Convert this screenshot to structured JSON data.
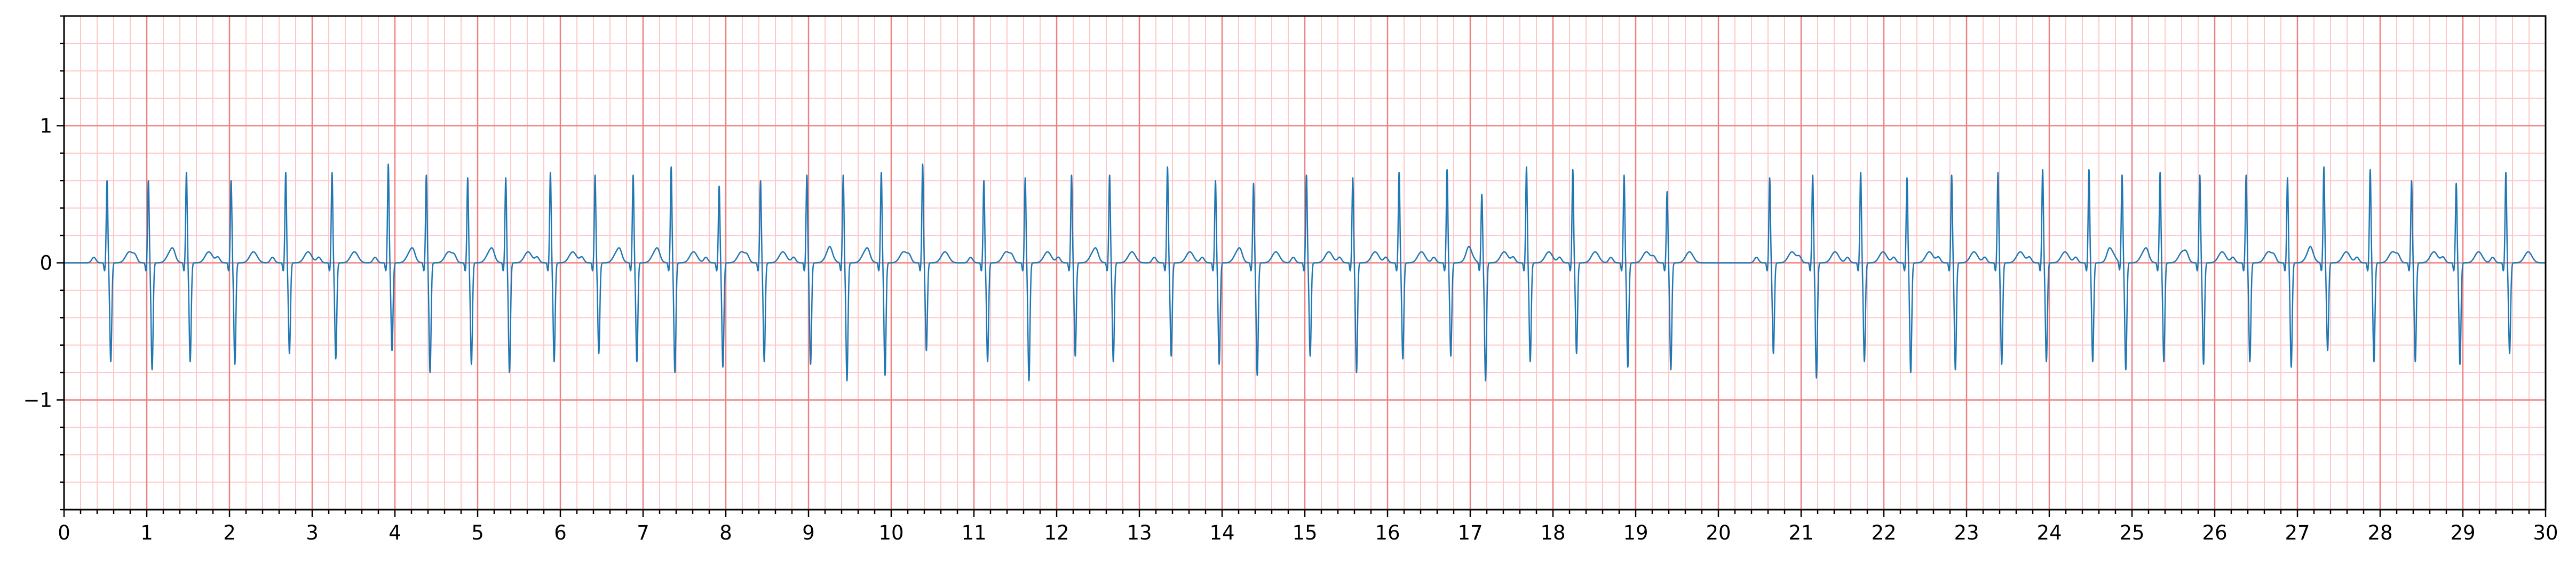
{
  "chart_data": {
    "type": "line",
    "title": "",
    "xlabel": "",
    "ylabel": "",
    "xlim": [
      0,
      30
    ],
    "ylim": [
      -1.8,
      1.8
    ],
    "x_ticks": [
      0,
      1,
      2,
      3,
      4,
      5,
      6,
      7,
      8,
      9,
      10,
      11,
      12,
      13,
      14,
      15,
      16,
      17,
      18,
      19,
      20,
      21,
      22,
      23,
      24,
      25,
      26,
      27,
      28,
      29,
      30
    ],
    "x_tick_labels": [
      "0",
      "1",
      "2",
      "3",
      "4",
      "5",
      "6",
      "7",
      "8",
      "9",
      "10",
      "11",
      "12",
      "13",
      "14",
      "15",
      "16",
      "17",
      "18",
      "19",
      "20",
      "21",
      "22",
      "23",
      "24",
      "25",
      "26",
      "27",
      "28",
      "29",
      "30"
    ],
    "y_ticks": [
      -1,
      0,
      1
    ],
    "y_tick_labels": [
      "−1",
      "0",
      "1"
    ],
    "grid": "on (ECG paper: major 1 s × 1 unit, minor 0.2 s × 0.2 unit)",
    "colors": {
      "major_grid": "#f08080",
      "minor_grid": "#ffc8c8",
      "signal": "#1f77b4",
      "axes": "#000000"
    },
    "series": [
      {
        "beat_times_s": [
          0.52,
          1.02,
          1.48,
          2.02,
          2.68,
          3.24,
          3.92,
          4.38,
          4.88,
          5.34,
          5.88,
          6.42,
          6.88,
          7.34,
          7.92,
          8.42,
          8.98,
          9.42,
          9.88,
          10.38,
          11.12,
          11.62,
          12.18,
          12.64,
          13.34,
          13.92,
          14.38,
          15.02,
          15.58,
          16.14,
          16.72,
          17.14,
          17.68,
          18.24,
          18.86,
          19.38,
          20.62,
          21.14,
          21.72,
          22.28,
          22.82,
          23.38,
          23.92,
          24.48,
          24.88,
          25.34,
          25.82,
          26.38,
          26.88,
          27.32,
          27.88,
          28.38,
          28.92,
          29.52
        ],
        "r_peak_values": [
          0.6,
          0.6,
          0.66,
          0.6,
          0.66,
          0.66,
          0.72,
          0.64,
          0.62,
          0.62,
          0.66,
          0.64,
          0.64,
          0.7,
          0.56,
          0.6,
          0.64,
          0.64,
          0.66,
          0.72,
          0.6,
          0.62,
          0.64,
          0.64,
          0.7,
          0.6,
          0.58,
          0.64,
          0.62,
          0.66,
          0.68,
          0.5,
          0.7,
          0.68,
          0.64,
          0.52,
          0.62,
          0.64,
          0.66,
          0.62,
          0.64,
          0.66,
          0.68,
          0.68,
          0.64,
          0.66,
          0.64,
          0.64,
          0.62,
          0.7,
          0.68,
          0.6,
          0.58,
          0.66
        ],
        "s_trough_values": [
          -0.72,
          -0.78,
          -0.72,
          -0.74,
          -0.66,
          -0.7,
          -0.64,
          -0.8,
          -0.74,
          -0.8,
          -0.72,
          -0.66,
          -0.72,
          -0.8,
          -0.76,
          -0.72,
          -0.74,
          -0.86,
          -0.82,
          -0.64,
          -0.72,
          -0.86,
          -0.68,
          -0.72,
          -0.68,
          -0.74,
          -0.82,
          -0.68,
          -0.8,
          -0.7,
          -0.68,
          -0.86,
          -0.72,
          -0.66,
          -0.76,
          -0.78,
          -0.66,
          -0.84,
          -0.72,
          -0.8,
          -0.78,
          -0.74,
          -0.72,
          -0.72,
          -0.78,
          -0.72,
          -0.74,
          -0.72,
          -0.76,
          -0.64,
          -0.72,
          -0.72,
          -0.74,
          -0.66
        ],
        "t_wave_amplitude": 0.08,
        "baseline": 0.0
      }
    ]
  }
}
